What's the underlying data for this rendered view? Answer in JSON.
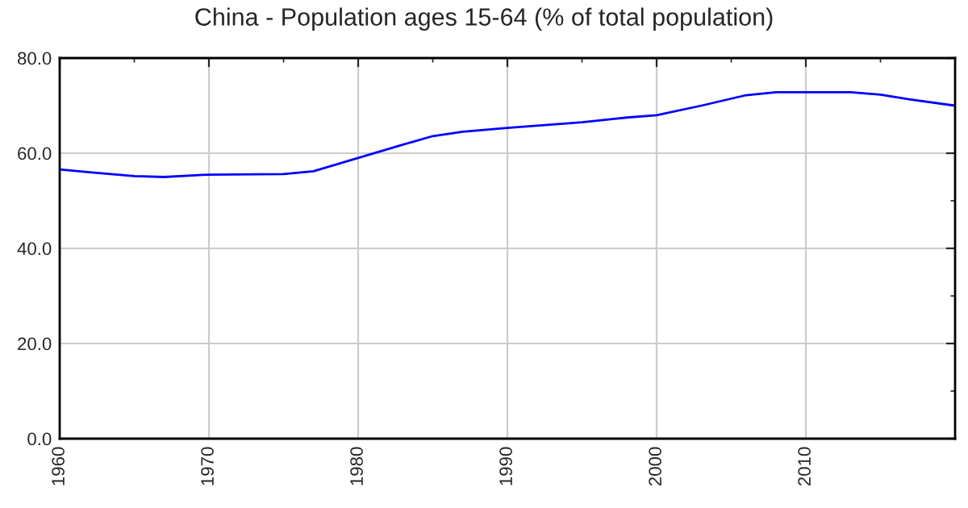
{
  "chart_data": {
    "type": "line",
    "title": "China - Population ages 15-64 (% of total population)",
    "x": [
      1960,
      1962,
      1965,
      1967,
      1970,
      1975,
      1977,
      1980,
      1983,
      1985,
      1987,
      1990,
      1995,
      1998,
      2000,
      2003,
      2006,
      2008,
      2010,
      2013,
      2015,
      2017,
      2020
    ],
    "series": [
      {
        "color": "#0000ff",
        "values": [
          56.6,
          56.0,
          55.2,
          55.0,
          55.5,
          55.6,
          56.2,
          59.0,
          61.8,
          63.6,
          64.5,
          65.3,
          66.5,
          67.5,
          68.0,
          70.0,
          72.2,
          72.8,
          72.8,
          72.8,
          72.3,
          71.3,
          70.0
        ]
      }
    ],
    "xlim": [
      1960,
      2020
    ],
    "xticks": [
      1960,
      1970,
      1980,
      1990,
      2000,
      2010
    ],
    "ylim": [
      0,
      80
    ],
    "yticks": [
      {
        "value": 0,
        "label": "0.0"
      },
      {
        "value": 20,
        "label": "20.0"
      },
      {
        "value": 40,
        "label": "40.0"
      },
      {
        "value": 60,
        "label": "60.0"
      },
      {
        "value": 80,
        "label": "80.0"
      }
    ],
    "grid": true,
    "marker": "none",
    "line_style": "solid"
  }
}
